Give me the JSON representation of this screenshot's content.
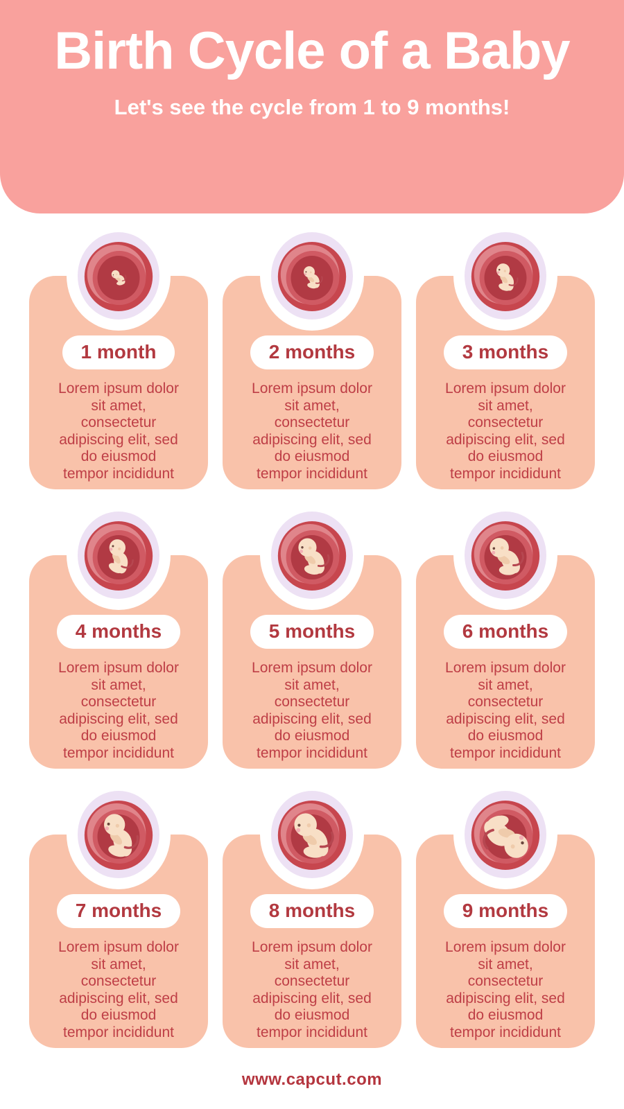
{
  "header": {
    "title": "Birth Cycle of a Baby",
    "subtitle": "Let's see the cycle from 1 to 9 months!"
  },
  "cards": [
    {
      "month_label": "1 month",
      "illustration": "womb-embryo-month-1",
      "body_lines": [
        "Lorem ipsum dolor",
        "sit amet,",
        "consectetur",
        "adipiscing elit, sed",
        "do eiusmod",
        "tempor incididunt"
      ]
    },
    {
      "month_label": "2 months",
      "illustration": "womb-fetus-month-2",
      "body_lines": [
        "Lorem ipsum dolor",
        "sit amet,",
        "consectetur",
        "adipiscing elit, sed",
        "do eiusmod",
        "tempor incididunt"
      ]
    },
    {
      "month_label": "3 months",
      "illustration": "womb-fetus-month-3",
      "body_lines": [
        "Lorem ipsum dolor",
        "sit amet,",
        "consectetur",
        "adipiscing elit, sed",
        "do eiusmod",
        "tempor incididunt"
      ]
    },
    {
      "month_label": "4 months",
      "illustration": "womb-fetus-month-4",
      "body_lines": [
        "Lorem ipsum dolor",
        "sit amet,",
        "consectetur",
        "adipiscing elit, sed",
        "do eiusmod",
        "tempor incididunt"
      ]
    },
    {
      "month_label": "5 months",
      "illustration": "womb-fetus-month-5",
      "body_lines": [
        "Lorem ipsum dolor",
        "sit amet,",
        "consectetur",
        "adipiscing elit, sed",
        "do eiusmod",
        "tempor incididunt"
      ]
    },
    {
      "month_label": "6 months",
      "illustration": "womb-fetus-month-6",
      "body_lines": [
        "Lorem ipsum dolor",
        "sit amet,",
        "consectetur",
        "adipiscing elit, sed",
        "do eiusmod",
        "tempor incididunt"
      ]
    },
    {
      "month_label": "7 months",
      "illustration": "womb-fetus-month-7",
      "body_lines": [
        "Lorem ipsum dolor",
        "sit amet,",
        "consectetur",
        "adipiscing elit, sed",
        "do eiusmod",
        "tempor incididunt"
      ]
    },
    {
      "month_label": "8 months",
      "illustration": "womb-fetus-month-8",
      "body_lines": [
        "Lorem ipsum dolor",
        "sit amet,",
        "consectetur",
        "adipiscing elit, sed",
        "do eiusmod",
        "tempor incididunt"
      ]
    },
    {
      "month_label": "9 months",
      "illustration": "womb-fetus-month-9",
      "body_lines": [
        "Lorem ipsum dolor",
        "sit amet,",
        "consectetur",
        "adipiscing elit, sed",
        "do eiusmod",
        "tempor incididunt"
      ]
    }
  ],
  "footer": {
    "url": "www.capcut.com"
  },
  "colors": {
    "header_bg": "#F9A19D",
    "card_bg": "#F9C2AA",
    "month_text": "#B23940",
    "body_text": "#BE3E46",
    "footer_text": "#B4353E",
    "halo": "#EDE1F4",
    "womb_outer": "#C7464E",
    "womb_light": "#E0858B",
    "womb_mid": "#D05A63",
    "womb_cavity": "#B13A44",
    "fetus_skin": "#F8DFC6",
    "fetus_shade": "#EFCBAB",
    "fetus_cheek": "#F2AFB4",
    "fetus_eye": "#6B463D",
    "cord": "#B64750"
  }
}
